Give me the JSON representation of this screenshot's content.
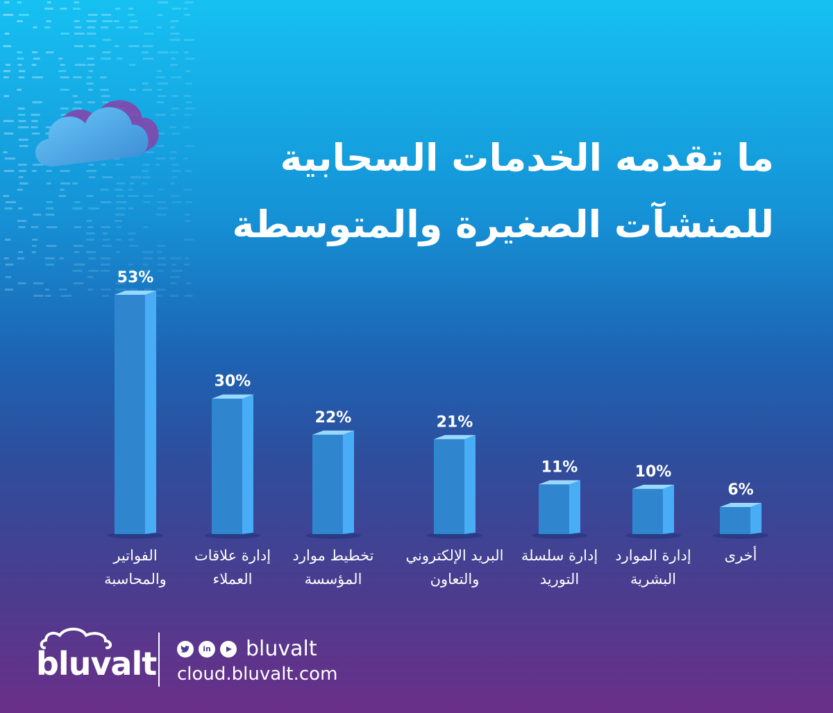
{
  "title": {
    "line1": "ما تقدمه الخدمات السحابية",
    "line2": "للمنشآت الصغيرة والمتوسطة"
  },
  "chart_data": {
    "type": "bar",
    "categories": [
      [
        "الفواتير",
        "والمحاسبة"
      ],
      [
        "إدارة علاقات",
        "العملاء"
      ],
      [
        "تخطيط موارد",
        "المؤسسة"
      ],
      [
        "البريد الإلكتروني",
        "والتعاون"
      ],
      [
        "إدارة سلسلة",
        "التوريد"
      ],
      [
        "إدارة الموارد",
        "البشرية"
      ],
      [
        "أخرى"
      ]
    ],
    "values": [
      53,
      30,
      22,
      21,
      11,
      10,
      6
    ],
    "value_labels": [
      "53%",
      "30%",
      "22%",
      "21%",
      "11%",
      "10%",
      "6%"
    ],
    "unit": "%",
    "colors": {
      "bar_front": "#2f86cf",
      "bar_side": "#49adf6",
      "bar_top": "#9ad9ff"
    }
  },
  "footer": {
    "brand": "bluvalt",
    "social_icons": [
      "twitter-icon",
      "linkedin-icon",
      "youtube-icon"
    ],
    "social_handle": "bluvalt",
    "website": "cloud.bluvalt.com"
  }
}
